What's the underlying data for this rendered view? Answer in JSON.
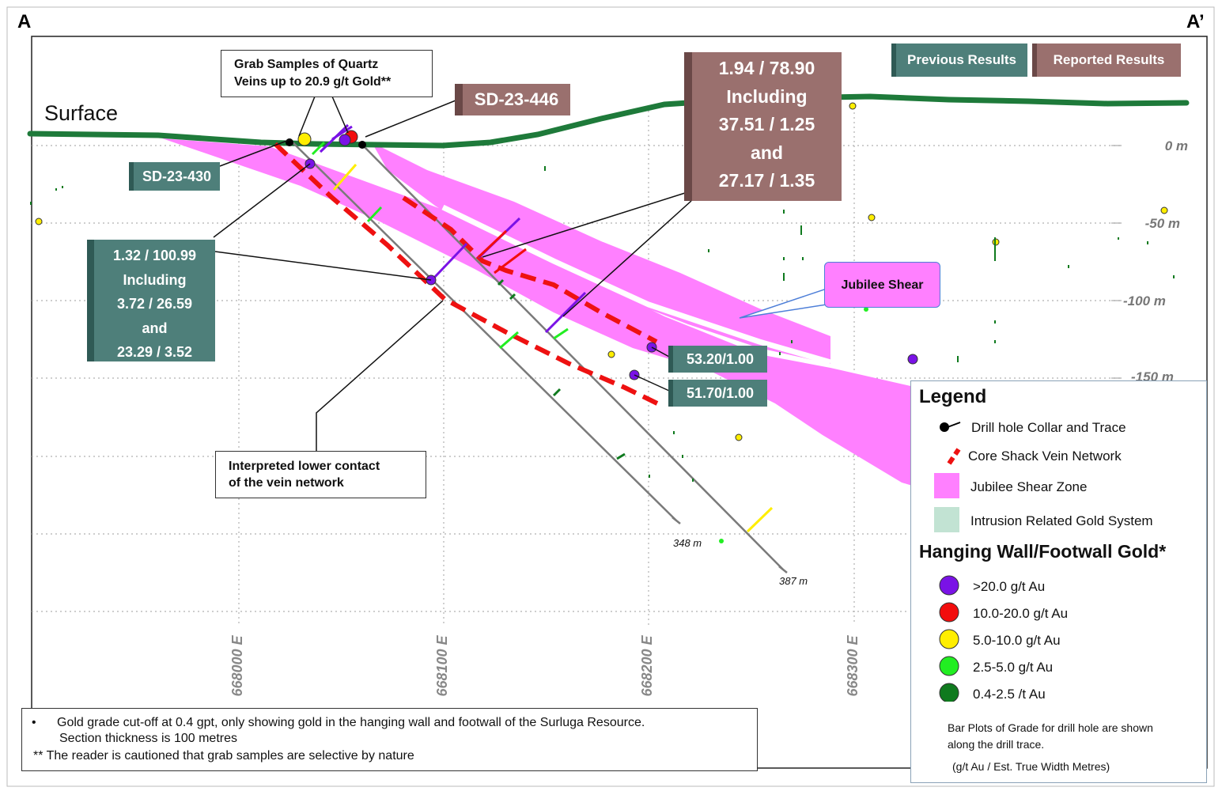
{
  "corners": {
    "left": "A",
    "right": "A’"
  },
  "surface_label": "Surface",
  "depth_labels": [
    "0 m",
    "-50 m",
    "-100 m",
    "-150 m"
  ],
  "easting_labels": [
    "668000 E",
    "668100 E",
    "668200 E",
    "668300 E"
  ],
  "buttons": {
    "previous": "Previous Results",
    "reported": "Reported Results"
  },
  "grab_box": {
    "line1": "Grab Samples of Quartz",
    "line2": "Veins up to 20.9 g/t Gold**"
  },
  "hole_labels": {
    "sd446": "SD-23-446",
    "sd430": "SD-23-430"
  },
  "result_430": [
    "1.32 / 100.99",
    "Including",
    "3.72 / 26.59",
    "and",
    "23.29 / 3.52"
  ],
  "result_446": [
    "1.94 / 78.90",
    "Including",
    "37.51 / 1.25",
    "and",
    "27.17 / 1.35"
  ],
  "point_labels": [
    "53.20/1.00",
    "51.70/1.00"
  ],
  "interp_box": {
    "line1": "Interpreted lower contact",
    "line2": "of the vein network"
  },
  "jubilee_label": "Jubilee Shear",
  "hole_depths": [
    "348 m",
    "387 m"
  ],
  "legend": {
    "title": "Legend",
    "items": [
      "Drill hole Collar and Trace",
      "Core Shack Vein Network",
      "Jubilee Shear Zone",
      "Intrusion Related Gold System"
    ],
    "gold_title": "Hanging Wall/Footwall Gold*",
    "gold_items": [
      ">20.0 g/t Au",
      "10.0-20.0 g/t Au",
      "5.0-10.0 g/t Au",
      "2.5-5.0  g/t Au",
      "0.4-2.5  /t Au"
    ],
    "gold_colors": [
      "#7a12e6",
      "#f20d0d",
      "#ffee00",
      "#22ee22",
      "#0f7a1e"
    ],
    "note1": "Bar Plots of Grade for drill hole are shown",
    "note2": "along the drill trace.",
    "note3": "(g/t Au / Est. True Width Metres)"
  },
  "footnote": {
    "bullet": "•",
    "line1": "Gold grade cut-off at 0.4 gpt, only showing gold in the hanging wall and footwall of the Surluga Resource.",
    "line2": "Section thickness is 100 metres",
    "line3": "** The reader is cautioned that grab samples are selective by nature"
  },
  "colors": {
    "surface": "#1e7a3a",
    "shear": "#ff80ff",
    "vein": "#ee1111",
    "green_tag": "#4e7f7a",
    "brown_tag": "#9a706e"
  }
}
